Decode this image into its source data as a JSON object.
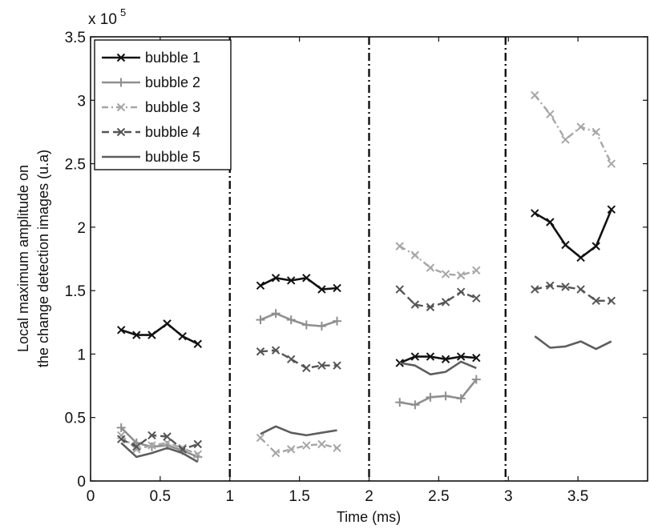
{
  "chart_data": {
    "type": "line",
    "title": "",
    "xlabel": "Time (ms)",
    "ylabel_line1": "Local maximum amplitude on",
    "ylabel_line2": "the change detection images (u.a)",
    "y_exponent_base": "x 10",
    "y_exponent_power": "5",
    "xlim": [
      0,
      4
    ],
    "ylim": [
      0,
      350000
    ],
    "x_ticks": [
      0,
      0.5,
      1,
      1.5,
      2,
      2.5,
      3,
      3.5
    ],
    "x_tick_labels": [
      "0",
      "0.5",
      "1",
      "1.5",
      "2",
      "2.5",
      "3",
      "3.5"
    ],
    "y_ticks": [
      0,
      50000,
      100000,
      150000,
      200000,
      250000,
      300000,
      350000
    ],
    "y_tick_labels": [
      "0",
      "0.5",
      "1",
      "1.5",
      "2",
      "2.5",
      "3",
      "3.5"
    ],
    "vertical_separators": [
      1,
      2,
      2.98
    ],
    "grid": false,
    "legend_position": "top-left",
    "series": [
      {
        "name": "bubble 1",
        "color": "#111111",
        "width": 2.6,
        "dash": "",
        "marker": "x",
        "segments": [
          [
            [
              0.22,
              119000
            ],
            [
              0.33,
              115000
            ],
            [
              0.44,
              115000
            ],
            [
              0.55,
              124000
            ],
            [
              0.66,
              114000
            ],
            [
              0.77,
              108000
            ]
          ],
          [
            [
              1.22,
              154000
            ],
            [
              1.33,
              160000
            ],
            [
              1.44,
              158000
            ],
            [
              1.55,
              160000
            ],
            [
              1.66,
              151000
            ],
            [
              1.77,
              152000
            ]
          ],
          [
            [
              2.22,
              93000
            ],
            [
              2.33,
              98000
            ],
            [
              2.44,
              98000
            ],
            [
              2.55,
              96000
            ],
            [
              2.66,
              98000
            ],
            [
              2.77,
              97000
            ]
          ],
          [
            [
              3.19,
              211000
            ],
            [
              3.3,
              204000
            ],
            [
              3.41,
              186000
            ],
            [
              3.52,
              176000
            ],
            [
              3.63,
              185000
            ],
            [
              3.74,
              214000
            ]
          ]
        ]
      },
      {
        "name": "bubble 2",
        "color": "#8f8f8f",
        "width": 2.6,
        "dash": "",
        "marker": "+",
        "segments": [
          [
            [
              0.22,
              42000
            ],
            [
              0.33,
              30000
            ],
            [
              0.44,
              27000
            ],
            [
              0.55,
              28000
            ],
            [
              0.66,
              24000
            ],
            [
              0.77,
              19000
            ]
          ],
          [
            [
              1.22,
              127000
            ],
            [
              1.33,
              132000
            ],
            [
              1.44,
              127000
            ],
            [
              1.55,
              123000
            ],
            [
              1.66,
              122000
            ],
            [
              1.77,
              126000
            ]
          ],
          [
            [
              2.22,
              62000
            ],
            [
              2.33,
              60000
            ],
            [
              2.44,
              66000
            ],
            [
              2.55,
              67000
            ],
            [
              2.66,
              65000
            ],
            [
              2.77,
              80000
            ]
          ]
        ]
      },
      {
        "name": "bubble 3",
        "color": "#a6a6a6",
        "width": 2.4,
        "dash": "8,4,2,4",
        "marker": "x",
        "segments": [
          [
            [
              0.22,
              36000
            ],
            [
              0.33,
              25000
            ],
            [
              0.44,
              28000
            ],
            [
              0.55,
              30000
            ],
            [
              0.66,
              26000
            ],
            [
              0.77,
              21000
            ]
          ],
          [
            [
              1.22,
              34000
            ],
            [
              1.33,
              22000
            ],
            [
              1.44,
              25000
            ],
            [
              1.55,
              28000
            ],
            [
              1.66,
              29000
            ],
            [
              1.77,
              26000
            ]
          ],
          [
            [
              2.22,
              185000
            ],
            [
              2.33,
              178000
            ],
            [
              2.44,
              168000
            ],
            [
              2.55,
              163000
            ],
            [
              2.66,
              162000
            ],
            [
              2.77,
              166000
            ]
          ],
          [
            [
              3.19,
              304000
            ],
            [
              3.3,
              289000
            ],
            [
              3.41,
              269000
            ],
            [
              3.52,
              279000
            ],
            [
              3.63,
              275000
            ],
            [
              3.74,
              250000
            ]
          ]
        ]
      },
      {
        "name": "bubble 4",
        "color": "#555555",
        "width": 2.4,
        "dash": "9,5",
        "marker": "x",
        "segments": [
          [
            [
              0.22,
              33000
            ],
            [
              0.33,
              27000
            ],
            [
              0.44,
              36000
            ],
            [
              0.55,
              35000
            ],
            [
              0.66,
              25000
            ],
            [
              0.77,
              29000
            ]
          ],
          [
            [
              1.22,
              102000
            ],
            [
              1.33,
              103000
            ],
            [
              1.44,
              96000
            ],
            [
              1.55,
              89000
            ],
            [
              1.66,
              91000
            ],
            [
              1.77,
              91000
            ]
          ],
          [
            [
              2.22,
              151000
            ],
            [
              2.33,
              139000
            ],
            [
              2.44,
              137000
            ],
            [
              2.55,
              141000
            ],
            [
              2.66,
              149000
            ],
            [
              2.77,
              144000
            ]
          ],
          [
            [
              3.19,
              151000
            ],
            [
              3.3,
              154000
            ],
            [
              3.41,
              153000
            ],
            [
              3.52,
              151000
            ],
            [
              3.63,
              142000
            ],
            [
              3.74,
              142000
            ]
          ]
        ]
      },
      {
        "name": "bubble 5",
        "color": "#5e5e5e",
        "width": 2.6,
        "dash": "",
        "marker": "",
        "segments": [
          [
            [
              0.22,
              30000
            ],
            [
              0.33,
              19000
            ],
            [
              0.44,
              22000
            ],
            [
              0.55,
              26000
            ],
            [
              0.66,
              22000
            ],
            [
              0.77,
              15000
            ]
          ],
          [
            [
              1.22,
              37000
            ],
            [
              1.33,
              43000
            ],
            [
              1.44,
              38000
            ],
            [
              1.55,
              36000
            ],
            [
              1.66,
              38000
            ],
            [
              1.77,
              40000
            ]
          ],
          [
            [
              2.22,
              93000
            ],
            [
              2.33,
              91000
            ],
            [
              2.44,
              84000
            ],
            [
              2.55,
              86000
            ],
            [
              2.66,
              94000
            ],
            [
              2.77,
              89000
            ]
          ],
          [
            [
              3.19,
              114000
            ],
            [
              3.3,
              105000
            ],
            [
              3.41,
              106000
            ],
            [
              3.52,
              110000
            ],
            [
              3.63,
              104000
            ],
            [
              3.74,
              110000
            ]
          ]
        ]
      }
    ]
  }
}
